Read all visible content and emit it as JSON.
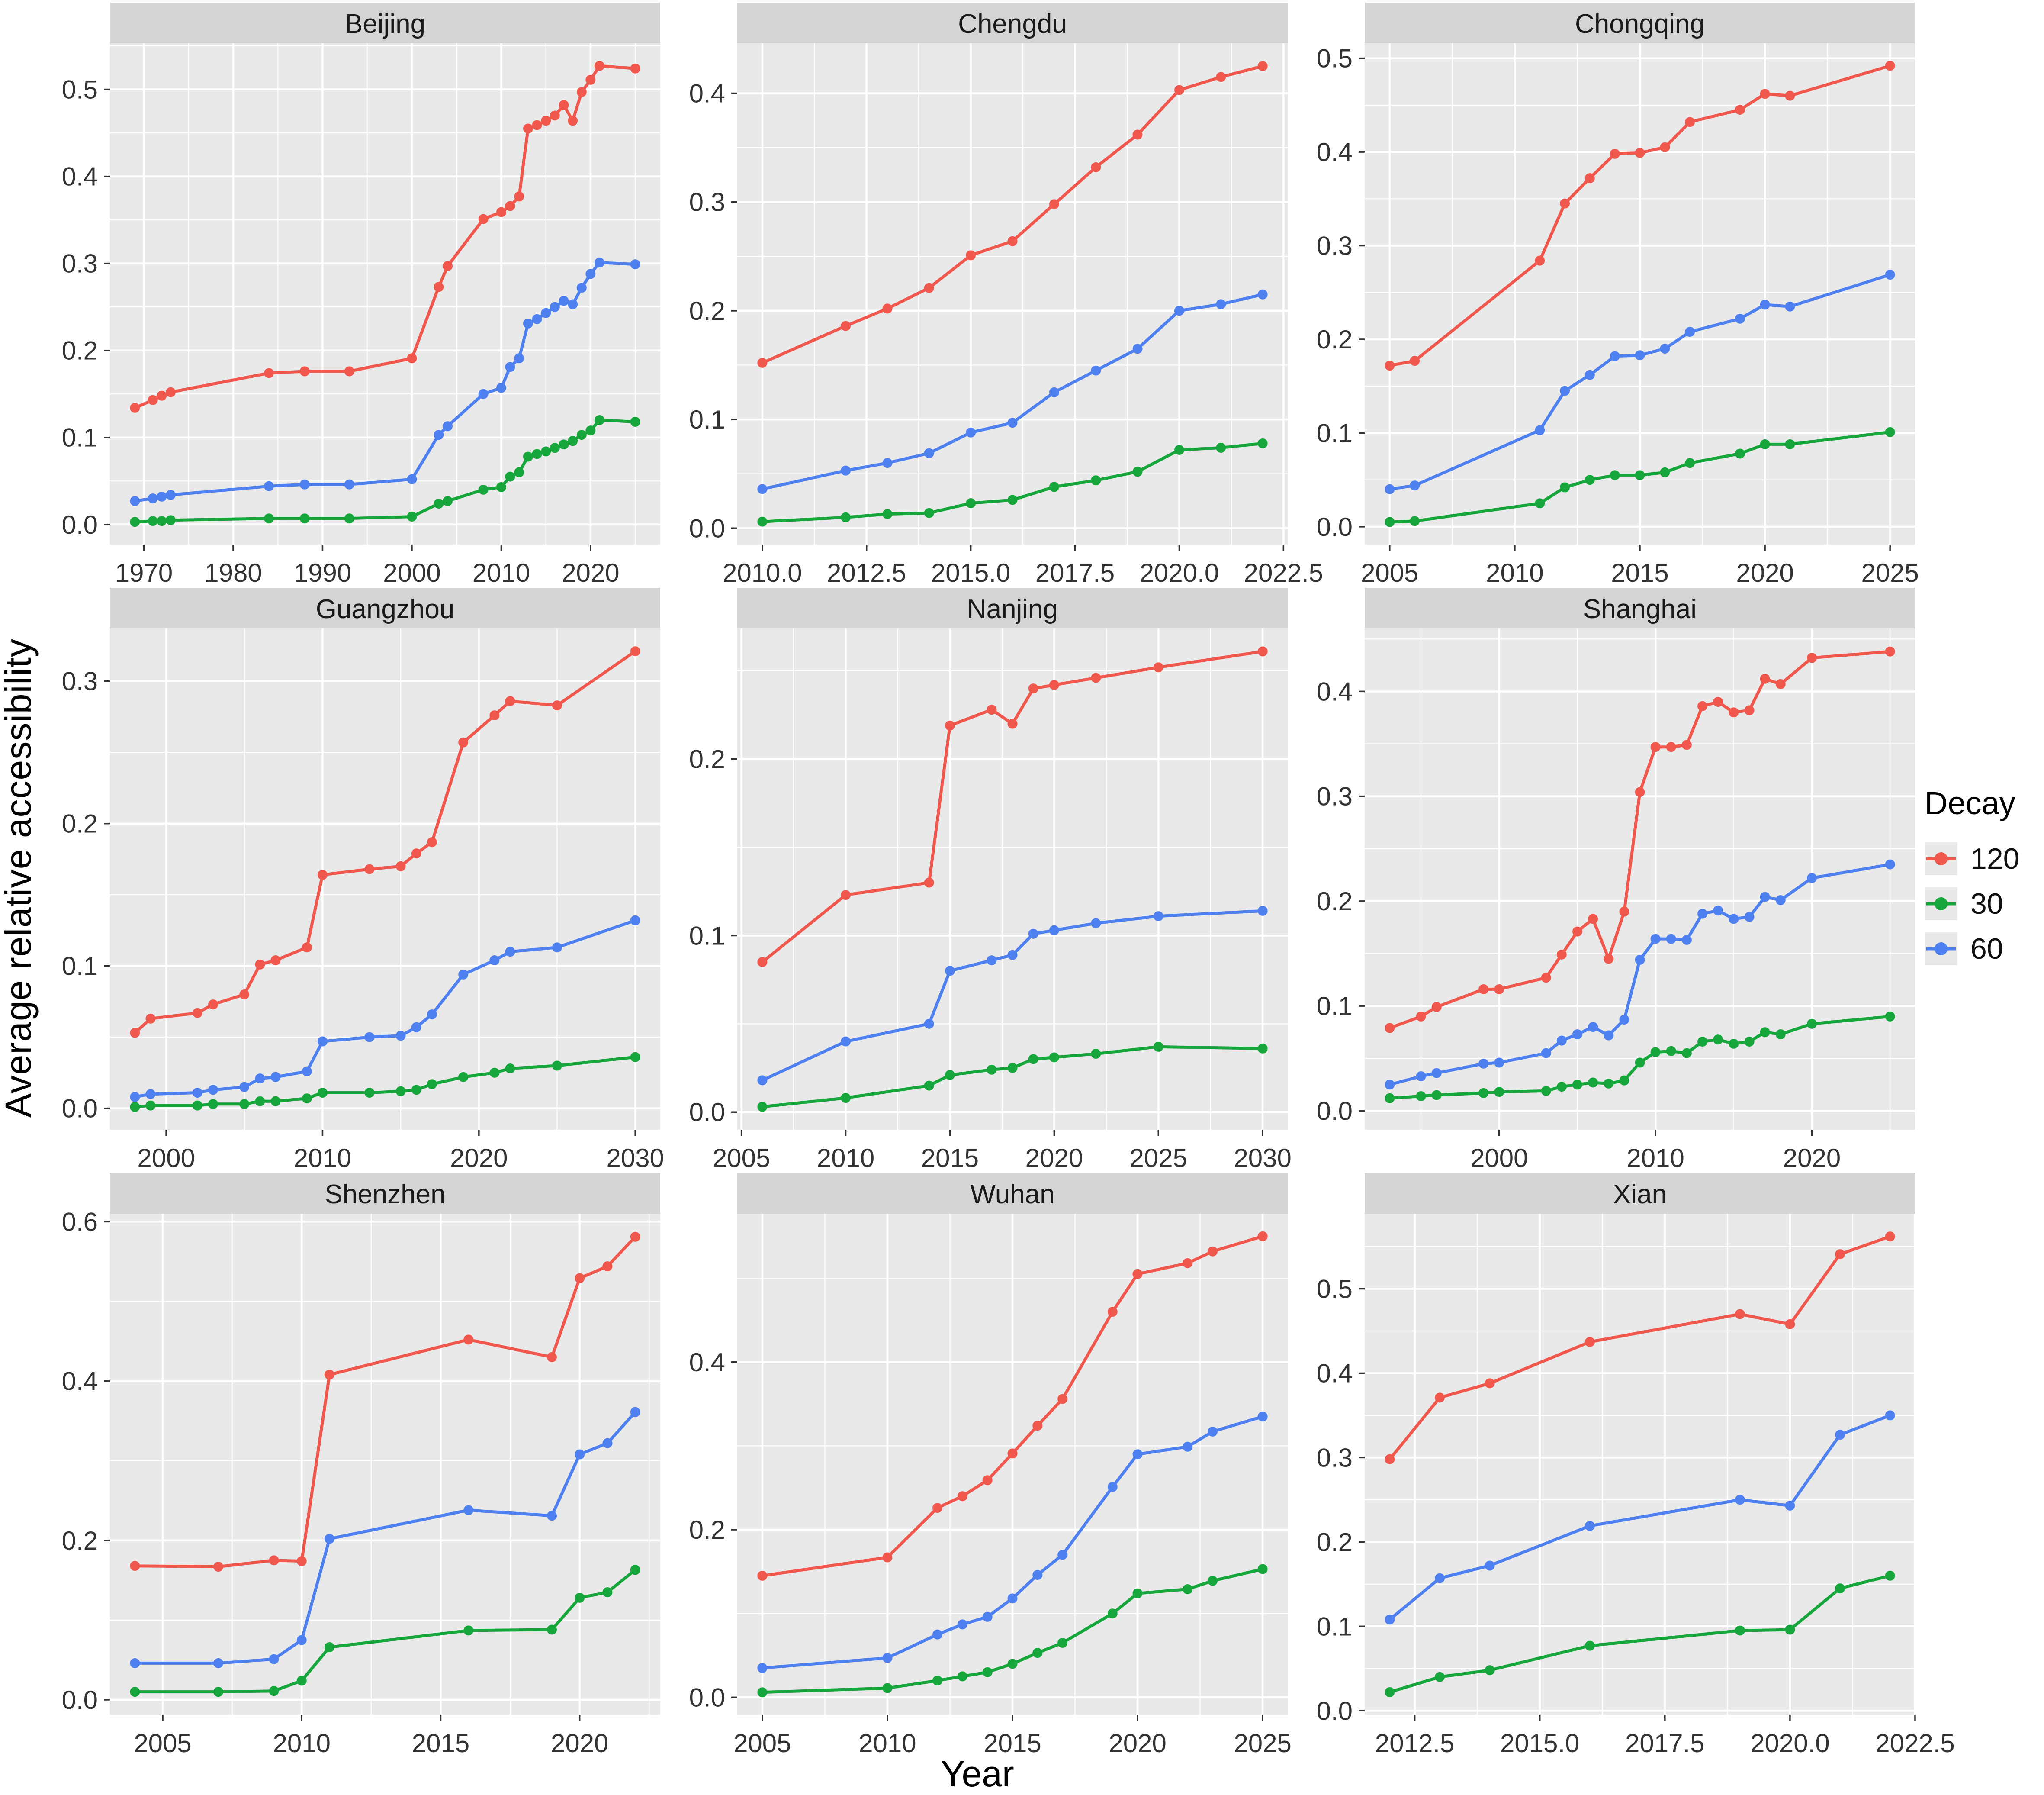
{
  "axes": {
    "x_title": "Year",
    "y_title": "Average relative accessibility"
  },
  "legend": {
    "title": "Decay",
    "items": [
      {
        "label": "120",
        "color": "#F0584E"
      },
      {
        "label": "30",
        "color": "#16A63C"
      },
      {
        "label": "60",
        "color": "#4E80F0"
      }
    ]
  },
  "style": {
    "panel_bg": "#E9E9E9",
    "strip_bg": "#D4D4D4",
    "grid": "#FFFFFF",
    "tick_text": "#333333",
    "title_text": "#1A1A1A"
  },
  "chart_data": [
    {
      "type": "line",
      "title": "Beijing",
      "xlim": [
        1966.2,
        2027.8
      ],
      "ylim": [
        -0.023,
        0.553
      ],
      "xticks": [
        1970,
        1980,
        1990,
        2000,
        2010,
        2020
      ],
      "xtick_labels": [
        "1970",
        "1980",
        "1990",
        "2000",
        "2010",
        "2020"
      ],
      "yticks": [
        0,
        0.1,
        0.2,
        0.3,
        0.4,
        0.5
      ],
      "ytick_labels": [
        "0.0",
        "0.1",
        "0.2",
        "0.3",
        "0.4",
        "0.5"
      ],
      "x": [
        1969,
        1971,
        1972,
        1973,
        1984,
        1988,
        1993,
        2000,
        2003,
        2004,
        2008,
        2010,
        2011,
        2012,
        2013,
        2014,
        2015,
        2016,
        2017,
        2018,
        2019,
        2020,
        2021,
        2025
      ],
      "series": [
        {
          "name": "120",
          "values": [
            0.134,
            0.143,
            0.148,
            0.152,
            0.174,
            0.176,
            0.176,
            0.191,
            0.273,
            0.297,
            0.351,
            0.359,
            0.366,
            0.377,
            0.455,
            0.459,
            0.464,
            0.47,
            0.482,
            0.464,
            0.497,
            0.511,
            0.527,
            0.524
          ]
        },
        {
          "name": "30",
          "values": [
            0.003,
            0.004,
            0.004,
            0.005,
            0.007,
            0.007,
            0.007,
            0.009,
            0.024,
            0.027,
            0.04,
            0.043,
            0.055,
            0.06,
            0.078,
            0.081,
            0.084,
            0.088,
            0.092,
            0.096,
            0.103,
            0.108,
            0.12,
            0.118
          ]
        },
        {
          "name": "60",
          "values": [
            0.027,
            0.03,
            0.032,
            0.034,
            0.044,
            0.046,
            0.046,
            0.052,
            0.103,
            0.113,
            0.15,
            0.157,
            0.181,
            0.191,
            0.231,
            0.236,
            0.243,
            0.25,
            0.257,
            0.253,
            0.272,
            0.288,
            0.301,
            0.299
          ]
        }
      ]
    },
    {
      "type": "line",
      "title": "Chengdu",
      "xlim": [
        2009.4,
        2022.6
      ],
      "ylim": [
        -0.015,
        0.446
      ],
      "xticks": [
        2010,
        2012.5,
        2015,
        2017.5,
        2020,
        2022.5
      ],
      "xtick_labels": [
        "2010.0",
        "2012.5",
        "2015.0",
        "2017.5",
        "2020.0",
        "2022.5"
      ],
      "yticks": [
        0,
        0.1,
        0.2,
        0.3,
        0.4
      ],
      "ytick_labels": [
        "0.0",
        "0.1",
        "0.2",
        "0.3",
        "0.4"
      ],
      "x": [
        2010,
        2012,
        2013,
        2014,
        2015,
        2016,
        2017,
        2018,
        2019,
        2020,
        2021,
        2022
      ],
      "series": [
        {
          "name": "120",
          "values": [
            0.152,
            0.186,
            0.202,
            0.221,
            0.251,
            0.264,
            0.298,
            0.332,
            0.362,
            0.403,
            0.415,
            0.425
          ]
        },
        {
          "name": "30",
          "values": [
            0.006,
            0.01,
            0.013,
            0.014,
            0.023,
            0.026,
            0.038,
            0.044,
            0.052,
            0.072,
            0.074,
            0.078
          ]
        },
        {
          "name": "60",
          "values": [
            0.036,
            0.053,
            0.06,
            0.069,
            0.088,
            0.097,
            0.125,
            0.145,
            0.165,
            0.2,
            0.206,
            0.215
          ]
        }
      ]
    },
    {
      "type": "line",
      "title": "Chongqing",
      "xlim": [
        2004,
        2026
      ],
      "ylim": [
        -0.019,
        0.516
      ],
      "xticks": [
        2005,
        2010,
        2015,
        2020,
        2025
      ],
      "xtick_labels": [
        "2005",
        "2010",
        "2015",
        "2020",
        "2025"
      ],
      "yticks": [
        0,
        0.1,
        0.2,
        0.3,
        0.4,
        0.5
      ],
      "ytick_labels": [
        "0.0",
        "0.1",
        "0.2",
        "0.3",
        "0.4",
        "0.5"
      ],
      "x": [
        2005,
        2006,
        2011,
        2012,
        2013,
        2014,
        2015,
        2016,
        2017,
        2019,
        2020,
        2021,
        2025
      ],
      "series": [
        {
          "name": "120",
          "values": [
            0.172,
            0.177,
            0.284,
            0.345,
            0.372,
            0.398,
            0.399,
            0.405,
            0.432,
            0.445,
            0.462,
            0.46,
            0.492
          ]
        },
        {
          "name": "30",
          "values": [
            0.005,
            0.006,
            0.025,
            0.042,
            0.05,
            0.055,
            0.055,
            0.058,
            0.068,
            0.078,
            0.088,
            0.088,
            0.101
          ]
        },
        {
          "name": "60",
          "values": [
            0.04,
            0.044,
            0.103,
            0.145,
            0.162,
            0.182,
            0.183,
            0.19,
            0.208,
            0.222,
            0.237,
            0.235,
            0.269
          ]
        }
      ]
    },
    {
      "type": "line",
      "title": "Guangzhou",
      "xlim": [
        1996.4,
        2031.6
      ],
      "ylim": [
        -0.015,
        0.337
      ],
      "xticks": [
        2000,
        2010,
        2020,
        2030
      ],
      "xtick_labels": [
        "2000",
        "2010",
        "2020",
        "2030"
      ],
      "yticks": [
        0,
        0.1,
        0.2,
        0.3
      ],
      "ytick_labels": [
        "0.0",
        "0.1",
        "0.2",
        "0.3"
      ],
      "x": [
        1998,
        1999,
        2002,
        2003,
        2005,
        2006,
        2007,
        2009,
        2010,
        2013,
        2015,
        2016,
        2017,
        2019,
        2021,
        2022,
        2025,
        2030
      ],
      "series": [
        {
          "name": "120",
          "values": [
            0.053,
            0.063,
            0.067,
            0.073,
            0.08,
            0.101,
            0.104,
            0.113,
            0.164,
            0.168,
            0.17,
            0.179,
            0.187,
            0.257,
            0.276,
            0.286,
            0.283,
            0.321
          ]
        },
        {
          "name": "30",
          "values": [
            0.001,
            0.002,
            0.002,
            0.003,
            0.003,
            0.005,
            0.005,
            0.007,
            0.011,
            0.011,
            0.012,
            0.013,
            0.017,
            0.022,
            0.025,
            0.028,
            0.03,
            0.036
          ]
        },
        {
          "name": "60",
          "values": [
            0.008,
            0.01,
            0.011,
            0.013,
            0.015,
            0.021,
            0.022,
            0.026,
            0.047,
            0.05,
            0.051,
            0.057,
            0.066,
            0.094,
            0.104,
            0.11,
            0.113,
            0.132
          ]
        }
      ]
    },
    {
      "type": "line",
      "title": "Nanjing",
      "xlim": [
        2004.8,
        2031.2
      ],
      "ylim": [
        -0.01,
        0.274
      ],
      "xticks": [
        2005,
        2010,
        2015,
        2020,
        2025,
        2030
      ],
      "xtick_labels": [
        "2005",
        "2010",
        "2015",
        "2020",
        "2025",
        "2030"
      ],
      "yticks": [
        0,
        0.1,
        0.2
      ],
      "ytick_labels": [
        "0.0",
        "0.1",
        "0.2"
      ],
      "x": [
        2006,
        2010,
        2014,
        2015,
        2017,
        2018,
        2019,
        2020,
        2022,
        2025,
        2030
      ],
      "series": [
        {
          "name": "120",
          "values": [
            0.085,
            0.123,
            0.13,
            0.219,
            0.228,
            0.22,
            0.24,
            0.242,
            0.246,
            0.252,
            0.261
          ]
        },
        {
          "name": "30",
          "values": [
            0.003,
            0.008,
            0.015,
            0.021,
            0.024,
            0.025,
            0.03,
            0.031,
            0.033,
            0.037,
            0.036
          ]
        },
        {
          "name": "60",
          "values": [
            0.018,
            0.04,
            0.05,
            0.08,
            0.086,
            0.089,
            0.101,
            0.103,
            0.107,
            0.111,
            0.114
          ]
        }
      ]
    },
    {
      "type": "line",
      "title": "Shanghai",
      "xlim": [
        1991.4,
        2026.6
      ],
      "ylim": [
        -0.018,
        0.46
      ],
      "xticks": [
        2000,
        2010,
        2020
      ],
      "xtick_labels": [
        "2000",
        "2010",
        "2020"
      ],
      "yticks": [
        0,
        0.1,
        0.2,
        0.3,
        0.4
      ],
      "ytick_labels": [
        "0.0",
        "0.1",
        "0.2",
        "0.3",
        "0.4"
      ],
      "x": [
        1993,
        1995,
        1996,
        1999,
        2000,
        2003,
        2004,
        2005,
        2006,
        2007,
        2008,
        2009,
        2010,
        2011,
        2012,
        2013,
        2014,
        2015,
        2016,
        2017,
        2018,
        2020,
        2025
      ],
      "series": [
        {
          "name": "120",
          "values": [
            0.079,
            0.09,
            0.099,
            0.116,
            0.116,
            0.127,
            0.149,
            0.171,
            0.183,
            0.145,
            0.19,
            0.304,
            0.347,
            0.347,
            0.349,
            0.386,
            0.39,
            0.38,
            0.382,
            0.412,
            0.407,
            0.432,
            0.438
          ]
        },
        {
          "name": "30",
          "values": [
            0.012,
            0.014,
            0.015,
            0.017,
            0.018,
            0.019,
            0.023,
            0.025,
            0.027,
            0.026,
            0.029,
            0.046,
            0.056,
            0.057,
            0.055,
            0.066,
            0.068,
            0.064,
            0.066,
            0.075,
            0.073,
            0.083,
            0.09
          ]
        },
        {
          "name": "60",
          "values": [
            0.025,
            0.033,
            0.036,
            0.045,
            0.046,
            0.055,
            0.067,
            0.073,
            0.08,
            0.072,
            0.087,
            0.144,
            0.164,
            0.164,
            0.163,
            0.188,
            0.191,
            0.183,
            0.185,
            0.204,
            0.201,
            0.222,
            0.235
          ]
        }
      ]
    },
    {
      "type": "line",
      "title": "Shenzhen",
      "xlim": [
        2003.1,
        2022.9
      ],
      "ylim": [
        -0.019,
        0.61
      ],
      "xticks": [
        2005,
        2010,
        2015,
        2020
      ],
      "xtick_labels": [
        "2005",
        "2010",
        "2015",
        "2020"
      ],
      "yticks": [
        0,
        0.2,
        0.4,
        0.6
      ],
      "ytick_labels": [
        "0.0",
        "0.2",
        "0.4",
        "0.6"
      ],
      "x": [
        2004,
        2007,
        2009,
        2010,
        2011,
        2016,
        2019,
        2020,
        2021,
        2022
      ],
      "series": [
        {
          "name": "120",
          "values": [
            0.168,
            0.167,
            0.175,
            0.174,
            0.408,
            0.452,
            0.43,
            0.529,
            0.544,
            0.581
          ]
        },
        {
          "name": "30",
          "values": [
            0.01,
            0.01,
            0.011,
            0.024,
            0.066,
            0.087,
            0.088,
            0.128,
            0.135,
            0.163
          ]
        },
        {
          "name": "60",
          "values": [
            0.046,
            0.046,
            0.051,
            0.075,
            0.202,
            0.238,
            0.231,
            0.308,
            0.322,
            0.361
          ]
        }
      ]
    },
    {
      "type": "line",
      "title": "Wuhan",
      "xlim": [
        2004,
        2026
      ],
      "ylim": [
        -0.021,
        0.577
      ],
      "xticks": [
        2005,
        2010,
        2015,
        2020,
        2025
      ],
      "xtick_labels": [
        "2005",
        "2010",
        "2015",
        "2020",
        "2025"
      ],
      "yticks": [
        0,
        0.2,
        0.4
      ],
      "ytick_labels": [
        "0.0",
        "0.2",
        "0.4"
      ],
      "x": [
        2005,
        2010,
        2012,
        2013,
        2014,
        2015,
        2016,
        2017,
        2019,
        2020,
        2022,
        2023,
        2025
      ],
      "series": [
        {
          "name": "120",
          "values": [
            0.145,
            0.167,
            0.226,
            0.24,
            0.259,
            0.291,
            0.324,
            0.356,
            0.46,
            0.505,
            0.518,
            0.532,
            0.55
          ]
        },
        {
          "name": "30",
          "values": [
            0.006,
            0.011,
            0.02,
            0.025,
            0.03,
            0.04,
            0.053,
            0.065,
            0.1,
            0.124,
            0.129,
            0.139,
            0.153
          ]
        },
        {
          "name": "60",
          "values": [
            0.035,
            0.047,
            0.075,
            0.087,
            0.096,
            0.118,
            0.146,
            0.17,
            0.251,
            0.29,
            0.299,
            0.317,
            0.335
          ]
        }
      ]
    },
    {
      "type": "line",
      "title": "Xian",
      "xlim": [
        2011.5,
        2022.5
      ],
      "ylim": [
        -0.005,
        0.589
      ],
      "xticks": [
        2012.5,
        2015,
        2017.5,
        2020,
        2022.5
      ],
      "xtick_labels": [
        "2012.5",
        "2015.0",
        "2017.5",
        "2020.0",
        "2022.5"
      ],
      "yticks": [
        0,
        0.1,
        0.2,
        0.3,
        0.4,
        0.5
      ],
      "ytick_labels": [
        "0.0",
        "0.1",
        "0.2",
        "0.3",
        "0.4",
        "0.5"
      ],
      "x": [
        2012,
        2013,
        2014,
        2016,
        2019,
        2020,
        2021,
        2022
      ],
      "series": [
        {
          "name": "120",
          "values": [
            0.298,
            0.371,
            0.388,
            0.437,
            0.47,
            0.458,
            0.541,
            0.562
          ]
        },
        {
          "name": "30",
          "values": [
            0.022,
            0.04,
            0.048,
            0.077,
            0.095,
            0.096,
            0.145,
            0.16
          ]
        },
        {
          "name": "60",
          "values": [
            0.108,
            0.157,
            0.172,
            0.219,
            0.25,
            0.243,
            0.327,
            0.35
          ]
        }
      ]
    }
  ]
}
